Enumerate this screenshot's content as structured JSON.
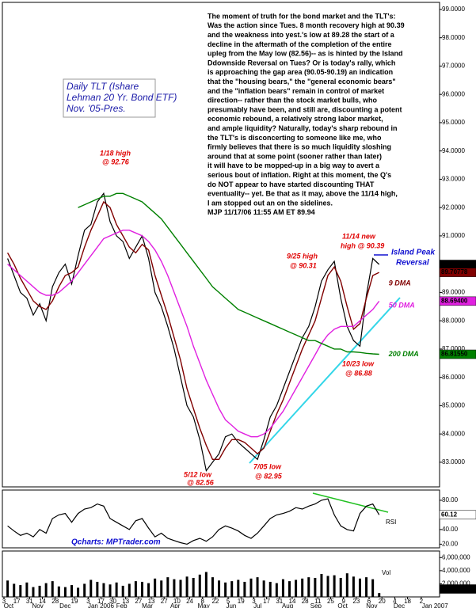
{
  "chart_data": [
    {
      "type": "line",
      "x": [
        "2005-10-07",
        "2005-10-14",
        "2005-10-21",
        "2005-10-28",
        "2005-11-04",
        "2005-11-11",
        "2005-11-18",
        "2005-11-25",
        "2005-12-02",
        "2005-12-09",
        "2005-12-16",
        "2005-12-23",
        "2005-12-30",
        "2006-01-06",
        "2006-01-13",
        "2006-01-20",
        "2006-01-27",
        "2006-02-03",
        "2006-02-10",
        "2006-02-17",
        "2006-02-24",
        "2006-03-03",
        "2006-03-10",
        "2006-03-17",
        "2006-03-24",
        "2006-03-31",
        "2006-04-07",
        "2006-04-14",
        "2006-04-21",
        "2006-04-28",
        "2006-05-05",
        "2006-05-12",
        "2006-05-19",
        "2006-05-26",
        "2006-06-02",
        "2006-06-09",
        "2006-06-16",
        "2006-06-23",
        "2006-06-30",
        "2006-07-07",
        "2006-07-14",
        "2006-07-21",
        "2006-07-28",
        "2006-08-04",
        "2006-08-11",
        "2006-08-18",
        "2006-08-25",
        "2006-09-01",
        "2006-09-08",
        "2006-09-15",
        "2006-09-22",
        "2006-09-29",
        "2006-10-06",
        "2006-10-13",
        "2006-10-20",
        "2006-10-27",
        "2006-11-03",
        "2006-11-10",
        "2006-11-17"
      ],
      "xlim": [
        "2005-10-03",
        "2007-01-22"
      ],
      "xticks": [
        {
          "value": "2005-10-03",
          "label": "3"
        },
        {
          "value": "2005-10-17",
          "label": "17"
        },
        {
          "value": "2005-10-31",
          "label": "31"
        },
        {
          "value": "2005-11-14",
          "label": "14"
        },
        {
          "value": "2005-11-28",
          "label": "28"
        },
        {
          "value": "2005-12-19",
          "label": "19"
        },
        {
          "value": "2006-01-03",
          "label": "3"
        },
        {
          "value": "2006-01-17",
          "label": "17"
        },
        {
          "value": "2006-01-30",
          "label": "30"
        },
        {
          "value": "2006-02-13",
          "label": "13"
        },
        {
          "value": "2006-02-27",
          "label": "27"
        },
        {
          "value": "2006-03-13",
          "label": "13"
        },
        {
          "value": "2006-03-27",
          "label": "27"
        },
        {
          "value": "2006-04-10",
          "label": "10"
        },
        {
          "value": "2006-04-24",
          "label": "24"
        },
        {
          "value": "2006-05-08",
          "label": "8"
        },
        {
          "value": "2006-05-22",
          "label": "22"
        },
        {
          "value": "2006-06-05",
          "label": "5"
        },
        {
          "value": "2006-06-19",
          "label": "19"
        },
        {
          "value": "2006-07-03",
          "label": "3"
        },
        {
          "value": "2006-07-17",
          "label": "17"
        },
        {
          "value": "2006-07-31",
          "label": "31"
        },
        {
          "value": "2006-08-14",
          "label": "14"
        },
        {
          "value": "2006-08-28",
          "label": "28"
        },
        {
          "value": "2006-09-11",
          "label": "11"
        },
        {
          "value": "2006-09-25",
          "label": "25"
        },
        {
          "value": "2006-10-09",
          "label": "9"
        },
        {
          "value": "2006-10-23",
          "label": "23"
        },
        {
          "value": "2006-11-06",
          "label": "6"
        },
        {
          "value": "2006-11-20",
          "label": "20"
        },
        {
          "value": "2006-12-04",
          "label": "4"
        },
        {
          "value": "2006-12-18",
          "label": "18"
        },
        {
          "value": "2007-01-02",
          "label": "2"
        }
      ],
      "months": [
        {
          "value": "2005-10-01",
          "label": "Oct"
        },
        {
          "value": "2005-11-01",
          "label": "Nov"
        },
        {
          "value": "2005-12-01",
          "label": "Dec"
        },
        {
          "value": "2006-01-01",
          "label": "Jan 2006"
        },
        {
          "value": "2006-02-01",
          "label": "Feb"
        },
        {
          "value": "2006-03-01",
          "label": "Mar"
        },
        {
          "value": "2006-04-01",
          "label": "Apr"
        },
        {
          "value": "2006-05-01",
          "label": "May"
        },
        {
          "value": "2006-06-01",
          "label": "Jun"
        },
        {
          "value": "2006-07-01",
          "label": "Jul"
        },
        {
          "value": "2006-08-01",
          "label": "Aug"
        },
        {
          "value": "2006-09-01",
          "label": "Sep"
        },
        {
          "value": "2006-10-01",
          "label": "Oct"
        },
        {
          "value": "2006-11-01",
          "label": "Nov"
        },
        {
          "value": "2006-12-01",
          "label": "Dec"
        },
        {
          "value": "2007-01-01",
          "label": "Jan 2007"
        }
      ],
      "ylim": [
        82.13,
        99.25
      ],
      "yticks": [
        {
          "value": 83,
          "label": "83.0000"
        },
        {
          "value": 84,
          "label": "84.0000"
        },
        {
          "value": 85,
          "label": "85.0000"
        },
        {
          "value": 86,
          "label": "86.0000"
        },
        {
          "value": 87,
          "label": "87.0000"
        },
        {
          "value": 88,
          "label": "88.0000"
        },
        {
          "value": 89,
          "label": "89.0000"
        },
        {
          "value": 90,
          "label": "90.0000"
        },
        {
          "value": 91,
          "label": "91.0000"
        },
        {
          "value": 92,
          "label": "92.0000"
        },
        {
          "value": 93,
          "label": "93.0000"
        },
        {
          "value": 94,
          "label": "94.0000"
        },
        {
          "value": 95,
          "label": "95.0000"
        },
        {
          "value": 96,
          "label": "96.0000"
        },
        {
          "value": 97,
          "label": "97.0000"
        },
        {
          "value": 98,
          "label": "98.0000"
        },
        {
          "value": 99,
          "label": "99.0000"
        }
      ],
      "series": [
        {
          "color": "#000000",
          "last_label": "89.9900",
          "values": [
            90.2,
            89.6,
            89.0,
            88.8,
            88.2,
            88.6,
            88.0,
            89.2,
            89.7,
            90.0,
            89.3,
            90.3,
            91.2,
            91.4,
            92.2,
            92.5,
            91.5,
            91.0,
            90.8,
            90.2,
            90.6,
            91.0,
            90.2,
            89.0,
            88.5,
            87.8,
            87.0,
            86.0,
            85.0,
            84.6,
            83.8,
            82.7,
            83.0,
            83.3,
            83.9,
            84.0,
            83.7,
            83.5,
            83.3,
            83.1,
            83.8,
            84.6,
            85.0,
            85.6,
            86.2,
            86.8,
            87.4,
            87.8,
            88.5,
            89.4,
            89.8,
            90.1,
            88.8,
            87.8,
            87.3,
            87.1,
            88.9,
            90.2,
            89.99
          ]
        },
        {
          "name": "9 DMA",
          "color": "#800000",
          "last_label": "89.70778",
          "values": [
            90.4,
            90.0,
            89.5,
            89.1,
            88.7,
            88.5,
            88.4,
            88.7,
            89.2,
            89.6,
            89.7,
            89.9,
            90.6,
            91.2,
            91.7,
            92.2,
            92.0,
            91.4,
            91.0,
            90.6,
            90.4,
            90.7,
            90.5,
            89.6,
            88.9,
            88.2,
            87.4,
            86.6,
            85.6,
            84.9,
            84.2,
            83.6,
            83.1,
            83.1,
            83.5,
            83.8,
            83.8,
            83.7,
            83.5,
            83.3,
            83.5,
            84.1,
            84.7,
            85.2,
            85.8,
            86.4,
            87.0,
            87.5,
            88.0,
            88.8,
            89.6,
            89.9,
            89.4,
            88.5,
            87.7,
            87.9,
            88.8,
            89.6,
            89.70778
          ]
        },
        {
          "name": "50 DMA",
          "color": "#e020e0",
          "last_label": "88.69400",
          "values": [
            90.0,
            89.8,
            89.6,
            89.4,
            89.2,
            89.0,
            88.9,
            88.9,
            89.0,
            89.2,
            89.4,
            89.7,
            90.0,
            90.3,
            90.6,
            90.9,
            91.0,
            91.1,
            91.2,
            91.2,
            91.1,
            91.0,
            90.8,
            90.5,
            90.1,
            89.6,
            89.0,
            88.4,
            87.8,
            87.1,
            86.5,
            85.9,
            85.4,
            84.9,
            84.5,
            84.3,
            84.1,
            84.0,
            83.9,
            83.9,
            84.0,
            84.2,
            84.5,
            84.8,
            85.2,
            85.6,
            86.0,
            86.4,
            86.8,
            87.2,
            87.5,
            87.7,
            87.8,
            87.8,
            87.8,
            88.0,
            88.2,
            88.4,
            88.694
          ]
        },
        {
          "name": "200 DMA",
          "color": "#008000",
          "last_label": "86.81550",
          "values": [
            null,
            null,
            null,
            null,
            null,
            null,
            null,
            null,
            null,
            null,
            null,
            92.0,
            92.1,
            92.2,
            92.3,
            92.4,
            92.4,
            92.5,
            92.5,
            92.4,
            92.3,
            92.2,
            92.0,
            91.8,
            91.6,
            91.3,
            91.0,
            90.7,
            90.4,
            90.1,
            89.8,
            89.5,
            89.2,
            89.0,
            88.8,
            88.6,
            88.4,
            88.3,
            88.2,
            88.1,
            88.0,
            87.9,
            87.8,
            87.7,
            87.6,
            87.5,
            87.4,
            87.3,
            87.3,
            87.2,
            87.1,
            87.0,
            87.0,
            86.9,
            86.9,
            86.88,
            86.85,
            86.83,
            86.8155
          ]
        }
      ]
    },
    {
      "type": "line",
      "ylim": [
        15,
        94
      ],
      "yticks": [
        {
          "value": 20,
          "label": "20.00"
        },
        {
          "value": 40,
          "label": "40.00"
        },
        {
          "value": 80,
          "label": "80.00"
        }
      ],
      "series": [
        {
          "name": "RSI",
          "color": "#000000",
          "last_label": "60.12",
          "values": [
            45,
            38,
            32,
            35,
            30,
            40,
            35,
            55,
            60,
            62,
            50,
            62,
            68,
            70,
            75,
            72,
            55,
            50,
            45,
            40,
            52,
            55,
            42,
            30,
            35,
            28,
            25,
            22,
            20,
            25,
            28,
            24,
            30,
            40,
            45,
            42,
            38,
            32,
            28,
            35,
            45,
            55,
            60,
            62,
            65,
            70,
            68,
            72,
            75,
            80,
            82,
            60,
            45,
            40,
            38,
            62,
            72,
            75,
            60.12
          ]
        }
      ]
    },
    {
      "type": "bar",
      "title": "Vol",
      "color": "#000000",
      "last_label": "585,000",
      "ylim": [
        0,
        7000000
      ],
      "yticks": [
        {
          "value": 2000000,
          "label": "2,000,000"
        },
        {
          "value": 4000000,
          "label": "4,000,000"
        },
        {
          "value": 6000000,
          "label": "6,000,000"
        }
      ],
      "values": [
        2500000,
        2000000,
        1800000,
        2200000,
        1500000,
        1700000,
        2100000,
        2400000,
        1600000,
        1500000,
        1800000,
        1400000,
        2000000,
        2600000,
        2300000,
        2100000,
        1900000,
        2200000,
        1700000,
        2000000,
        2400000,
        2300000,
        2100000,
        2800000,
        2500000,
        3000000,
        2700000,
        2600000,
        3100000,
        2900000,
        3400000,
        3800000,
        3000000,
        2500000,
        2200000,
        2400000,
        2600000,
        2300000,
        2800000,
        3000000,
        2500000,
        2300000,
        2100000,
        2700000,
        2400000,
        2600000,
        2800000,
        3000000,
        2900000,
        3500000,
        3200000,
        3300000,
        2900000,
        3600000,
        3100000,
        2800000,
        3000000,
        2700000,
        585000
      ]
    }
  ],
  "label_box": [
    "Daily TLT (Ishare",
    "Lehman 20 Yr. Bond ETF)",
    "Nov. '05-Pres."
  ],
  "commentary": [
    "The moment of truth for the bond market and the TLT's:",
    "Was the action since Tues. 8 month recovery high at 90.39",
    "and the weakness into yest.'s low at 89.28 the start of a",
    "decline in the aftermath of the completion of the entire",
    "upleg from the May low (82.56)-- as is hinted by the Island",
    "Ddownside Reversal on Tues? Or is today's rally, which",
    "is approaching the gap area (90.05-90.19) an indication",
    "that the \"housing bears,\" the \"general economic bears\"",
    "and the \"inflation bears\" remain in control of market",
    "direction-- rather than the stock market bulls, who",
    "presumably have been, and still are, discounting a potent",
    "economic rebound, a relatively strong labor market,",
    "and ample liquidity? Naturally, today's sharp rebound in",
    "the TLT's is disconcerting to someone like me, who",
    "firmly believes that there is so much liquidity sloshing",
    "around that at some point (sooner rather than later)",
    "it will have to be mopped-up in a big way to avert a",
    "serious bout of inflation. Right at this moment, the Q's",
    "do NOT appear to have started discounting THAT",
    "eventuality-- yet. Be that as it may, above the 11/14 high,",
    "I am stopped out an on the sidelines.",
    "MJP  11/17/06  11:55 AM ET  89.94"
  ],
  "annotations": [
    "1/18 high",
    "@ 92.76",
    "9/25 high",
    "@ 90.31",
    "11/14 new",
    "high @ 90.39",
    "Island Peak",
    "Reversal",
    "10/23 low",
    "@ 86.88",
    "5/12 low",
    "@ 82.56",
    "7/05 low",
    "@ 82.95"
  ],
  "source": "Qcharts: MPTrader.com"
}
